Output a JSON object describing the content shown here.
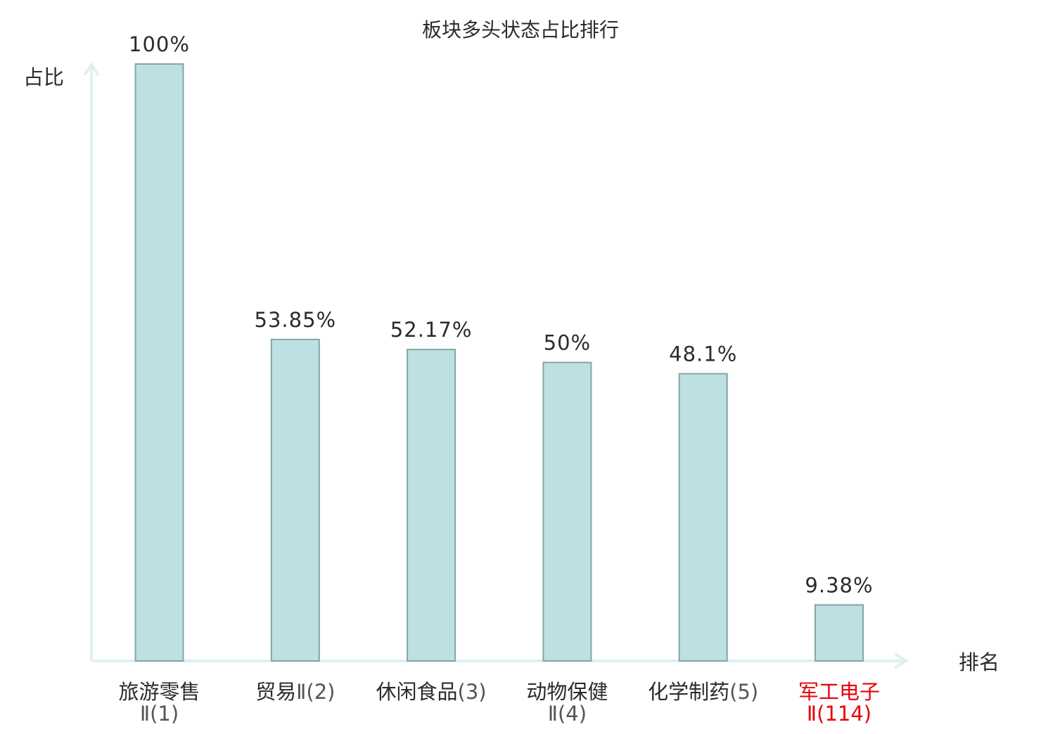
{
  "chart_data": {
    "type": "bar",
    "title": "板块多头状态占比排行",
    "ylabel": "占比",
    "xlabel": "排名",
    "ylim": [
      0,
      100
    ],
    "grid": false,
    "categories": [
      {
        "name": "旅游零售",
        "rank": "Ⅱ(1)"
      },
      {
        "name": "贸易",
        "rank": "Ⅱ(2)"
      },
      {
        "name": "休闲食品",
        "rank": "(3)"
      },
      {
        "name": "动物保健",
        "rank": "Ⅱ(4)"
      },
      {
        "name": "化学制药",
        "rank": "(5)"
      },
      {
        "name": "军工电子",
        "rank": "Ⅱ(114)"
      }
    ],
    "values": [
      100,
      53.85,
      52.17,
      50,
      48.1,
      9.38
    ],
    "value_labels": [
      "100%",
      "53.85%",
      "52.17%",
      "50%",
      "48.1%",
      "9.38%"
    ],
    "highlight_index": 5
  },
  "colors": {
    "bar_fill": "#bde0e2",
    "bar_stroke": "#86a4a6",
    "axis": "#dff1ee",
    "text": "#2b2b2b",
    "rank_text": "#555555",
    "highlight": "#e8000a"
  }
}
